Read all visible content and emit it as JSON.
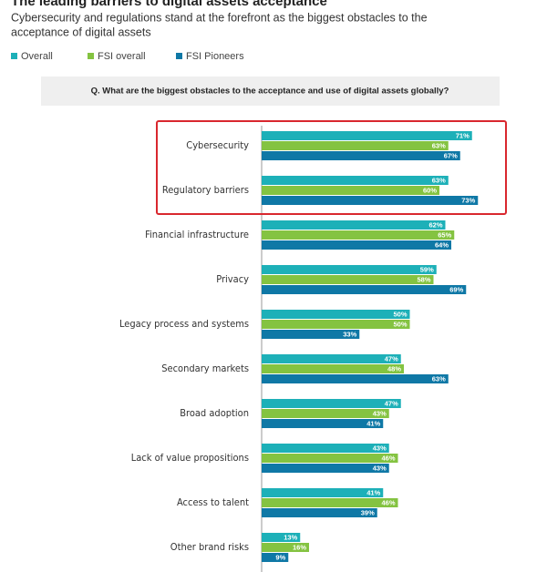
{
  "chart_data": {
    "type": "bar",
    "orientation": "horizontal",
    "title": "The leading barriers to digital assets acceptance",
    "subtitle_lines": [
      "Cybersecurity and regulations stand at the forefront as the biggest obstacles to the",
      "acceptance of digital assets"
    ],
    "question": "Q. What are the biggest obstacles to the acceptance and use of digital assets globally?",
    "categories": [
      "Cybersecurity",
      "Regulatory barriers",
      "Financial infrastructure",
      "Privacy",
      "Legacy process and systems",
      "Secondary markets",
      "Broad adoption",
      "Lack of value propositions",
      "Access to talent",
      "Other brand risks"
    ],
    "series": [
      {
        "name": "Overall",
        "color": "#1db0b8",
        "values": [
          71,
          63,
          62,
          59,
          50,
          47,
          47,
          43,
          41,
          13
        ],
        "value_labels": [
          "71%",
          "63%",
          "62%",
          "59%",
          "50%",
          "47%",
          "47%",
          "43%",
          "41%",
          "13%"
        ]
      },
      {
        "name": "FSI overall",
        "color": "#84c341",
        "values": [
          63,
          60,
          65,
          58,
          50,
          48,
          43,
          46,
          46,
          16
        ],
        "value_labels": [
          "63%",
          "60%",
          "65%",
          "58%",
          "50%",
          "48%",
          "43%",
          "46%",
          "46%",
          "16%"
        ]
      },
      {
        "name": "FSI Pioneers",
        "color": "#0f78a6",
        "values": [
          67,
          73,
          64,
          69,
          33,
          63,
          41,
          43,
          39,
          9
        ],
        "value_labels": [
          "67%",
          "73%",
          "64%",
          "69%",
          "33%",
          "63%",
          "41%",
          "43%",
          "39%",
          "9%"
        ]
      }
    ]
  }
}
